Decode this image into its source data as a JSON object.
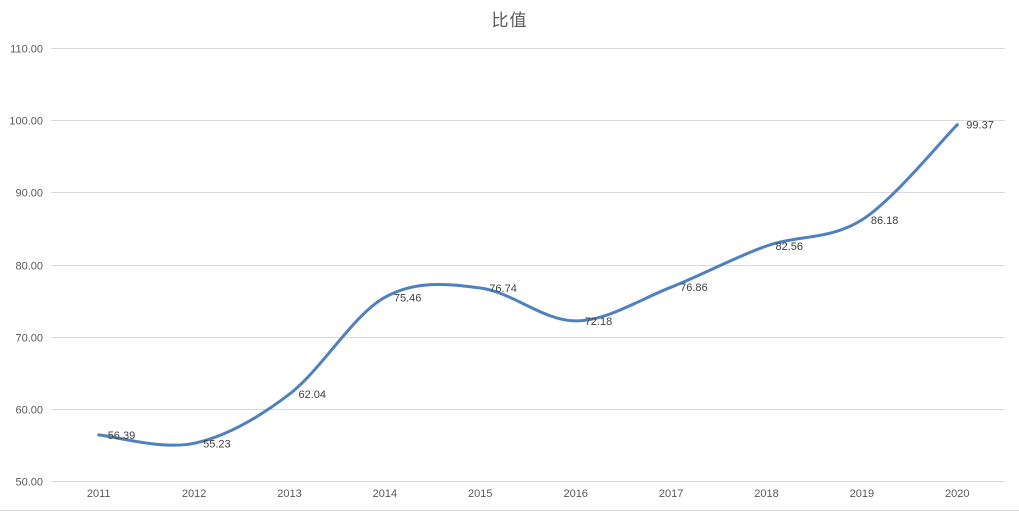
{
  "chart_data": {
    "type": "line",
    "title": "比值",
    "categories": [
      "2011",
      "2012",
      "2013",
      "2014",
      "2015",
      "2016",
      "2017",
      "2018",
      "2019",
      "2020"
    ],
    "values": [
      56.39,
      55.23,
      62.04,
      75.46,
      76.74,
      72.18,
      76.86,
      82.56,
      86.18,
      99.37
    ],
    "data_labels": [
      "56.39",
      "55.23",
      "62.04",
      "75.46",
      "76.74",
      "72.18",
      "76.86",
      "82.56",
      "86.18",
      "99.37"
    ],
    "y_ticks": [
      "50.00",
      "60.00",
      "70.00",
      "80.00",
      "90.00",
      "100.00",
      "110.00"
    ],
    "ylim": [
      50,
      110
    ],
    "y_step": 10,
    "xlabel": "",
    "ylabel": "",
    "grid": true,
    "legend_position": "none",
    "smooth": true,
    "line_color": "#4f81bd",
    "grid_color": "#d9d9d9",
    "tick_label_color": "#595959",
    "data_label_color": "#404040",
    "title_color": "#595959"
  }
}
